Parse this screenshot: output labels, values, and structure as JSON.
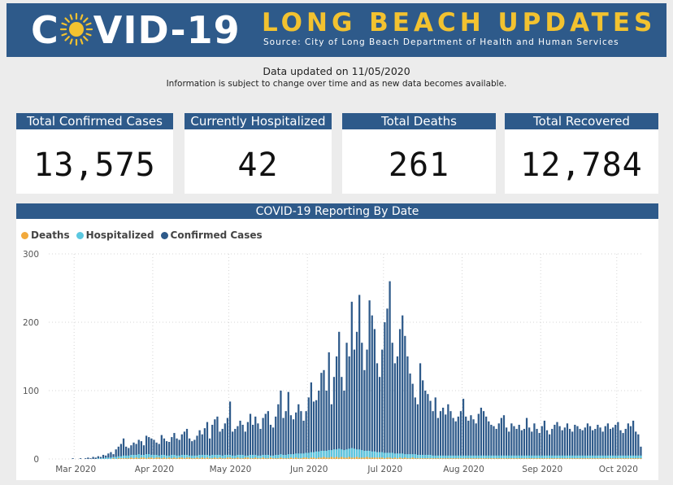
{
  "header": {
    "brand_left": "C",
    "brand_right": "VID-19",
    "headline": "LONG BEACH UPDATES",
    "source": "Source: City of Long Beach Department of Health and Human Services",
    "sun_icon": "sun-icon",
    "banner_color": "#2e5a8a",
    "headline_color": "#f2c230"
  },
  "notice": {
    "updated": "Data updated on 11/05/2020",
    "disclaimer": "Information is subject to change over time and as new data becomes available."
  },
  "kpis": [
    {
      "label": "Total Confirmed Cases",
      "value": "13,575"
    },
    {
      "label": "Currently Hospitalized",
      "value": "42"
    },
    {
      "label": "Total Deaths",
      "value": "261"
    },
    {
      "label": "Total Recovered",
      "value": "12,784"
    }
  ],
  "chart_data": {
    "type": "bar",
    "title": "COVID-19 Reporting By Date",
    "ylim": [
      0,
      300
    ],
    "yticks": [
      0,
      100,
      200,
      300
    ],
    "xtick_labels": [
      "Mar 2020",
      "Apr 2020",
      "May 2020",
      "Jun 2020",
      "Jul 2020",
      "Aug 2020",
      "Sep 2020",
      "Oct 2020"
    ],
    "x_start": "2020-02-20",
    "colors": {
      "deaths": "#f2a93b",
      "hospitalized": "#5bc8e0",
      "confirmed": "#2e5a8a"
    },
    "series": [
      {
        "name": "Deaths",
        "color": "#f2a93b"
      },
      {
        "name": "Hospitalized",
        "color": "#5bc8e0"
      },
      {
        "name": "Confirmed Cases",
        "color": "#2e5a8a"
      }
    ],
    "confirmed_daily": [
      0,
      0,
      0,
      0,
      0,
      0,
      0,
      0,
      0,
      1,
      0,
      0,
      1,
      0,
      1,
      2,
      1,
      3,
      2,
      4,
      3,
      6,
      5,
      8,
      10,
      7,
      14,
      18,
      22,
      30,
      18,
      16,
      20,
      24,
      22,
      28,
      26,
      20,
      34,
      32,
      30,
      28,
      24,
      22,
      35,
      30,
      26,
      25,
      32,
      38,
      30,
      28,
      36,
      40,
      44,
      30,
      26,
      28,
      34,
      42,
      36,
      45,
      54,
      30,
      50,
      58,
      62,
      40,
      44,
      52,
      60,
      84,
      40,
      44,
      48,
      56,
      50,
      40,
      54,
      66,
      50,
      62,
      52,
      44,
      60,
      66,
      70,
      50,
      46,
      62,
      80,
      100,
      60,
      70,
      98,
      64,
      58,
      68,
      80,
      70,
      56,
      70,
      90,
      112,
      84,
      86,
      100,
      126,
      130,
      100,
      156,
      80,
      120,
      150,
      186,
      120,
      100,
      170,
      150,
      230,
      160,
      186,
      240,
      170,
      130,
      160,
      232,
      210,
      190,
      140,
      120,
      160,
      200,
      220,
      260,
      170,
      140,
      150,
      190,
      210,
      180,
      150,
      125,
      110,
      90,
      80,
      140,
      115,
      100,
      95,
      85,
      70,
      90,
      60,
      70,
      75,
      65,
      80,
      70,
      60,
      55,
      62,
      70,
      88,
      62,
      56,
      64,
      58,
      52,
      66,
      75,
      70,
      62,
      55,
      50,
      48,
      44,
      52,
      60,
      64,
      46,
      40,
      52,
      48,
      44,
      50,
      42,
      44,
      60,
      46,
      40,
      52,
      44,
      38,
      48,
      56,
      42,
      36,
      44,
      50,
      54,
      48,
      42,
      46,
      52,
      44,
      40,
      50,
      48,
      44,
      42,
      46,
      52,
      48,
      42,
      44,
      50,
      46,
      40,
      48,
      52,
      44,
      46,
      50,
      54,
      42,
      38,
      44,
      52,
      48,
      56,
      40,
      36,
      18
    ],
    "hospitalized_daily": [
      0,
      0,
      0,
      0,
      0,
      0,
      0,
      0,
      0,
      0,
      0,
      0,
      0,
      0,
      0,
      0,
      0,
      0,
      0,
      1,
      1,
      1,
      2,
      2,
      2,
      3,
      3,
      4,
      4,
      5,
      5,
      5,
      6,
      6,
      6,
      7,
      6,
      6,
      7,
      7,
      6,
      6,
      6,
      5,
      6,
      6,
      5,
      5,
      6,
      6,
      5,
      5,
      6,
      6,
      6,
      5,
      5,
      5,
      5,
      6,
      6,
      6,
      6,
      5,
      6,
      6,
      6,
      6,
      5,
      6,
      6,
      6,
      5,
      5,
      6,
      6,
      6,
      5,
      5,
      6,
      6,
      6,
      5,
      5,
      6,
      6,
      6,
      5,
      5,
      6,
      6,
      7,
      6,
      6,
      7,
      7,
      7,
      8,
      8,
      8,
      8,
      9,
      9,
      10,
      10,
      11,
      11,
      12,
      12,
      12,
      13,
      13,
      14,
      14,
      15,
      14,
      13,
      14,
      15,
      16,
      15,
      14,
      14,
      13,
      12,
      12,
      12,
      11,
      11,
      10,
      10,
      10,
      9,
      9,
      9,
      9,
      8,
      8,
      8,
      8,
      7,
      7,
      7,
      7,
      7,
      6,
      6,
      6,
      6,
      6,
      6,
      5,
      5,
      5,
      5,
      5,
      5,
      5,
      5,
      5,
      5,
      5,
      5,
      5,
      5,
      5,
      5,
      5,
      5,
      5,
      5,
      5,
      5,
      5,
      5,
      5,
      5,
      5,
      5,
      5,
      5,
      5,
      5,
      5,
      5,
      5,
      5,
      5,
      5,
      5,
      5,
      5,
      5,
      5,
      5,
      5,
      5,
      5,
      5,
      5,
      5,
      5,
      5,
      5,
      5,
      5,
      5,
      5,
      5,
      5,
      5,
      5,
      5,
      5,
      5,
      5,
      5,
      5,
      5,
      5,
      5,
      5,
      5,
      5,
      5,
      5,
      5,
      5,
      5,
      5,
      5,
      5,
      5,
      5,
      5,
      5,
      5,
      5,
      5,
      5,
      5,
      5
    ],
    "deaths_daily": [
      0,
      0,
      0,
      0,
      0,
      0,
      0,
      0,
      0,
      0,
      0,
      0,
      0,
      0,
      0,
      0,
      0,
      0,
      0,
      0,
      0,
      0,
      0,
      0,
      0,
      1,
      0,
      1,
      1,
      1,
      1,
      1,
      2,
      1,
      2,
      1,
      2,
      2,
      1,
      2,
      2,
      1,
      2,
      2,
      1,
      2,
      1,
      2,
      1,
      2,
      1,
      2,
      2,
      1,
      2,
      2,
      1,
      1,
      2,
      1,
      2,
      1,
      2,
      1,
      1,
      2,
      1,
      2,
      1,
      1,
      2,
      2,
      1,
      1,
      2,
      1,
      1,
      2,
      2,
      1,
      1,
      2,
      1,
      1,
      2,
      1,
      1,
      2,
      1,
      1,
      1,
      2,
      1,
      1,
      1,
      2,
      1,
      2,
      1,
      1,
      2,
      2,
      1,
      2,
      2,
      1,
      2,
      2,
      3,
      2,
      2,
      3,
      2,
      3,
      2,
      3,
      2,
      2,
      3,
      2,
      2,
      3,
      2,
      2,
      2,
      3,
      2,
      2,
      2,
      2,
      2,
      2,
      1,
      2,
      2,
      1,
      2,
      1,
      2,
      1,
      2,
      1,
      1,
      2,
      1,
      1,
      1,
      1,
      1,
      1,
      1,
      1,
      1,
      1,
      1,
      1,
      1,
      1,
      1,
      1,
      1,
      1,
      1,
      1,
      1,
      1,
      1,
      1,
      1,
      1,
      1,
      1,
      1,
      1,
      1,
      1,
      1,
      1,
      1,
      1,
      1,
      1,
      1,
      1,
      1,
      1,
      1,
      1,
      1,
      1,
      1,
      1,
      1,
      1,
      1,
      1,
      1,
      1,
      1,
      1,
      1,
      1,
      1,
      1,
      1,
      1,
      1,
      1,
      1,
      1,
      1,
      1,
      1,
      1,
      1,
      1,
      1,
      1,
      1,
      1,
      1,
      1,
      1,
      1,
      1,
      1,
      1,
      1,
      1,
      1,
      1,
      1,
      1,
      1,
      1,
      1,
      1,
      1,
      1,
      1,
      1,
      1,
      1,
      1,
      1,
      1
    ]
  }
}
